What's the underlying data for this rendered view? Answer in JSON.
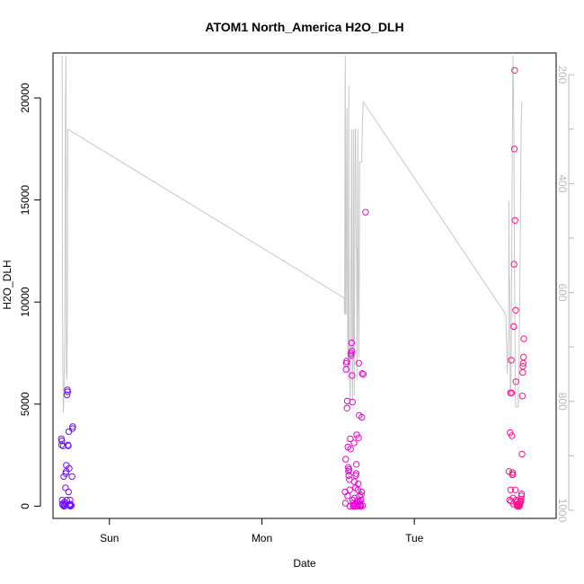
{
  "chart_data": {
    "type": "scatter",
    "title": "ATOM1 North_America H2O_DLH",
    "xlabel": "Date",
    "ylabel": "H2O_DLH",
    "x_tick_labels": [
      "Sun",
      "Mon",
      "Tue"
    ],
    "x_ticks_day": [
      1,
      2,
      3
    ],
    "xlim_day": [
      0.63,
      3.93
    ],
    "ylim": [
      -600,
      22200
    ],
    "y_ticks": [
      0,
      5000,
      10000,
      15000,
      20000
    ],
    "y_tick_labels": [
      "0",
      "5000",
      "10000",
      "15000",
      "20000"
    ],
    "y2_label_ticks": [
      200,
      400,
      600,
      800,
      1000
    ],
    "y2_tick_labels": [
      "200",
      "400",
      "600",
      "800",
      "1000"
    ],
    "y2_minor_ticks": [
      200,
      300,
      400,
      500,
      600,
      700,
      800,
      900,
      1000
    ],
    "y2lim_reversed": [
      1015,
      160
    ],
    "grid": false,
    "series": [
      {
        "kind": "scatter",
        "values": [
          [
            0.685,
            3300
          ],
          [
            0.686,
            3000
          ],
          [
            0.688,
            3200
          ],
          [
            0.69,
            300
          ],
          [
            0.692,
            100
          ],
          [
            0.695,
            50
          ],
          [
            0.697,
            2950
          ],
          [
            0.7,
            1450
          ],
          [
            0.702,
            0
          ],
          [
            0.704,
            200
          ],
          [
            0.706,
            80
          ],
          [
            0.708,
            20
          ],
          [
            0.71,
            150
          ],
          [
            0.712,
            900
          ],
          [
            0.714,
            1600
          ],
          [
            0.716,
            1700
          ],
          [
            0.718,
            2000
          ],
          [
            0.72,
            300
          ],
          [
            0.722,
            5450
          ],
          [
            0.724,
            5700
          ],
          [
            0.726,
            5600
          ],
          [
            0.728,
            3000
          ],
          [
            0.73,
            2950
          ],
          [
            0.732,
            700
          ],
          [
            0.734,
            3650
          ],
          [
            0.736,
            1850
          ],
          [
            0.738,
            50
          ],
          [
            0.74,
            100
          ],
          [
            0.742,
            300
          ],
          [
            0.744,
            0
          ],
          [
            0.746,
            80
          ],
          [
            0.748,
            50
          ],
          [
            0.75,
            30
          ],
          [
            0.755,
            1450
          ],
          [
            0.757,
            3800
          ],
          [
            0.759,
            3900
          ],
          [
            2.545,
            700
          ],
          [
            2.548,
            150
          ],
          [
            2.55,
            2300
          ],
          [
            2.552,
            6700
          ],
          [
            2.554,
            7000
          ],
          [
            2.556,
            7100
          ],
          [
            2.558,
            4800
          ],
          [
            2.56,
            5150
          ],
          [
            2.562,
            500
          ],
          [
            2.564,
            2900
          ],
          [
            2.566,
            1900
          ],
          [
            2.568,
            1700
          ],
          [
            2.57,
            1500
          ],
          [
            2.572,
            1800
          ],
          [
            2.574,
            1300
          ],
          [
            2.576,
            800
          ],
          [
            2.578,
            0
          ],
          [
            2.58,
            3300
          ],
          [
            2.582,
            2800
          ],
          [
            2.584,
            7500
          ],
          [
            2.586,
            7400
          ],
          [
            2.588,
            8000
          ],
          [
            2.59,
            7600
          ],
          [
            2.592,
            6400
          ],
          [
            2.594,
            5100
          ],
          [
            2.596,
            300
          ],
          [
            2.598,
            150
          ],
          [
            2.6,
            0
          ],
          [
            2.602,
            50
          ],
          [
            2.604,
            3100
          ],
          [
            2.606,
            1200
          ],
          [
            2.608,
            400
          ],
          [
            2.61,
            100
          ],
          [
            2.612,
            0
          ],
          [
            2.614,
            900
          ],
          [
            2.616,
            1500
          ],
          [
            2.618,
            1600
          ],
          [
            2.62,
            2050
          ],
          [
            2.622,
            3500
          ],
          [
            2.624,
            250
          ],
          [
            2.626,
            100
          ],
          [
            2.628,
            0
          ],
          [
            2.63,
            800
          ],
          [
            2.632,
            1100
          ],
          [
            2.634,
            3350
          ],
          [
            2.636,
            7000
          ],
          [
            2.638,
            4450
          ],
          [
            2.64,
            500
          ],
          [
            2.642,
            200
          ],
          [
            2.644,
            100
          ],
          [
            2.646,
            50
          ],
          [
            2.648,
            0
          ],
          [
            2.65,
            300
          ],
          [
            2.652,
            550
          ],
          [
            2.654,
            700
          ],
          [
            2.656,
            4350
          ],
          [
            2.658,
            6500
          ],
          [
            2.66,
            20
          ],
          [
            2.665,
            6450
          ],
          [
            2.68,
            14400
          ],
          [
            3.62,
            1700
          ],
          [
            3.625,
            300
          ],
          [
            3.628,
            3600
          ],
          [
            3.63,
            5550
          ],
          [
            3.632,
            800
          ],
          [
            3.634,
            250
          ],
          [
            3.636,
            7150
          ],
          [
            3.638,
            5550
          ],
          [
            3.64,
            3450
          ],
          [
            3.642,
            1550
          ],
          [
            3.644,
            1650
          ],
          [
            3.646,
            1550
          ],
          [
            3.648,
            400
          ],
          [
            3.65,
            100
          ],
          [
            3.652,
            8800
          ],
          [
            3.654,
            11850
          ],
          [
            3.656,
            17500
          ],
          [
            3.658,
            21350
          ],
          [
            3.66,
            14000
          ],
          [
            3.662,
            800
          ],
          [
            3.664,
            9600
          ],
          [
            3.666,
            6100
          ],
          [
            3.668,
            300
          ],
          [
            3.67,
            200
          ],
          [
            3.672,
            100
          ],
          [
            3.674,
            50
          ],
          [
            3.676,
            0
          ],
          [
            3.678,
            20
          ],
          [
            3.68,
            10
          ],
          [
            3.682,
            0
          ],
          [
            3.684,
            30
          ],
          [
            3.686,
            50
          ],
          [
            3.688,
            0
          ],
          [
            3.69,
            20
          ],
          [
            3.692,
            100
          ],
          [
            3.694,
            150
          ],
          [
            3.696,
            200
          ],
          [
            3.698,
            250
          ],
          [
            3.7,
            350
          ],
          [
            3.702,
            500
          ],
          [
            3.704,
            600
          ],
          [
            3.706,
            2550
          ],
          [
            3.708,
            5400
          ],
          [
            3.71,
            6550
          ],
          [
            3.712,
            6850
          ],
          [
            3.714,
            7000
          ],
          [
            3.716,
            7300
          ],
          [
            3.718,
            8200
          ]
        ]
      },
      {
        "kind": "line",
        "color": "#c8c8c8",
        "axis": "right",
        "values": [
          [
            0.69,
            165
          ],
          [
            0.692,
            600
          ],
          [
            0.695,
            750
          ],
          [
            0.697,
            820
          ],
          [
            0.7,
            810
          ],
          [
            0.703,
            760
          ],
          [
            0.706,
            700
          ],
          [
            0.709,
            560
          ],
          [
            0.712,
            250
          ],
          [
            0.715,
            165
          ],
          [
            0.718,
            750
          ],
          [
            0.721,
            760
          ],
          [
            0.724,
            650
          ],
          [
            0.727,
            300
          ],
          [
            2.54,
            610
          ],
          [
            2.543,
            640
          ],
          [
            2.545,
            240
          ],
          [
            2.547,
            165
          ],
          [
            2.549,
            640
          ],
          [
            2.552,
            640
          ],
          [
            2.555,
            380
          ],
          [
            2.558,
            260
          ],
          [
            2.561,
            580
          ],
          [
            2.564,
            760
          ],
          [
            2.567,
            680
          ],
          [
            2.57,
            220
          ],
          [
            2.573,
            700
          ],
          [
            2.576,
            760
          ],
          [
            2.579,
            800
          ],
          [
            2.582,
            700
          ],
          [
            2.585,
            500
          ],
          [
            2.588,
            300
          ],
          [
            2.591,
            680
          ],
          [
            2.594,
            800
          ],
          [
            2.597,
            700
          ],
          [
            2.6,
            300
          ],
          [
            2.603,
            690
          ],
          [
            2.606,
            790
          ],
          [
            2.609,
            500
          ],
          [
            2.612,
            300
          ],
          [
            2.615,
            300
          ],
          [
            2.618,
            520
          ],
          [
            2.621,
            520
          ],
          [
            2.624,
            760
          ],
          [
            2.627,
            500
          ],
          [
            2.63,
            300
          ],
          [
            2.633,
            620
          ],
          [
            2.636,
            720
          ],
          [
            2.639,
            560
          ],
          [
            2.642,
            360
          ],
          [
            2.645,
            360
          ],
          [
            2.648,
            360
          ],
          [
            2.651,
            360
          ],
          [
            2.655,
            360
          ],
          [
            2.66,
            280
          ],
          [
            2.665,
            250
          ],
          [
            3.6,
            640
          ],
          [
            3.61,
            750
          ],
          [
            3.615,
            700
          ],
          [
            3.618,
            680
          ],
          [
            3.62,
            430
          ],
          [
            3.623,
            570
          ],
          [
            3.626,
            580
          ],
          [
            3.629,
            780
          ],
          [
            3.632,
            790
          ],
          [
            3.635,
            730
          ],
          [
            3.638,
            600
          ],
          [
            3.641,
            400
          ],
          [
            3.644,
            270
          ],
          [
            3.647,
            165
          ],
          [
            3.65,
            220
          ],
          [
            3.653,
            320
          ],
          [
            3.656,
            500
          ],
          [
            3.659,
            640
          ],
          [
            3.662,
            770
          ],
          [
            3.665,
            810
          ],
          [
            3.668,
            810
          ],
          [
            3.671,
            810
          ],
          [
            3.674,
            810
          ],
          [
            3.677,
            810
          ],
          [
            3.68,
            810
          ],
          [
            3.685,
            760
          ],
          [
            3.69,
            640
          ],
          [
            3.695,
            500
          ],
          [
            3.7,
            300
          ],
          [
            3.705,
            250
          ]
        ]
      }
    ]
  }
}
